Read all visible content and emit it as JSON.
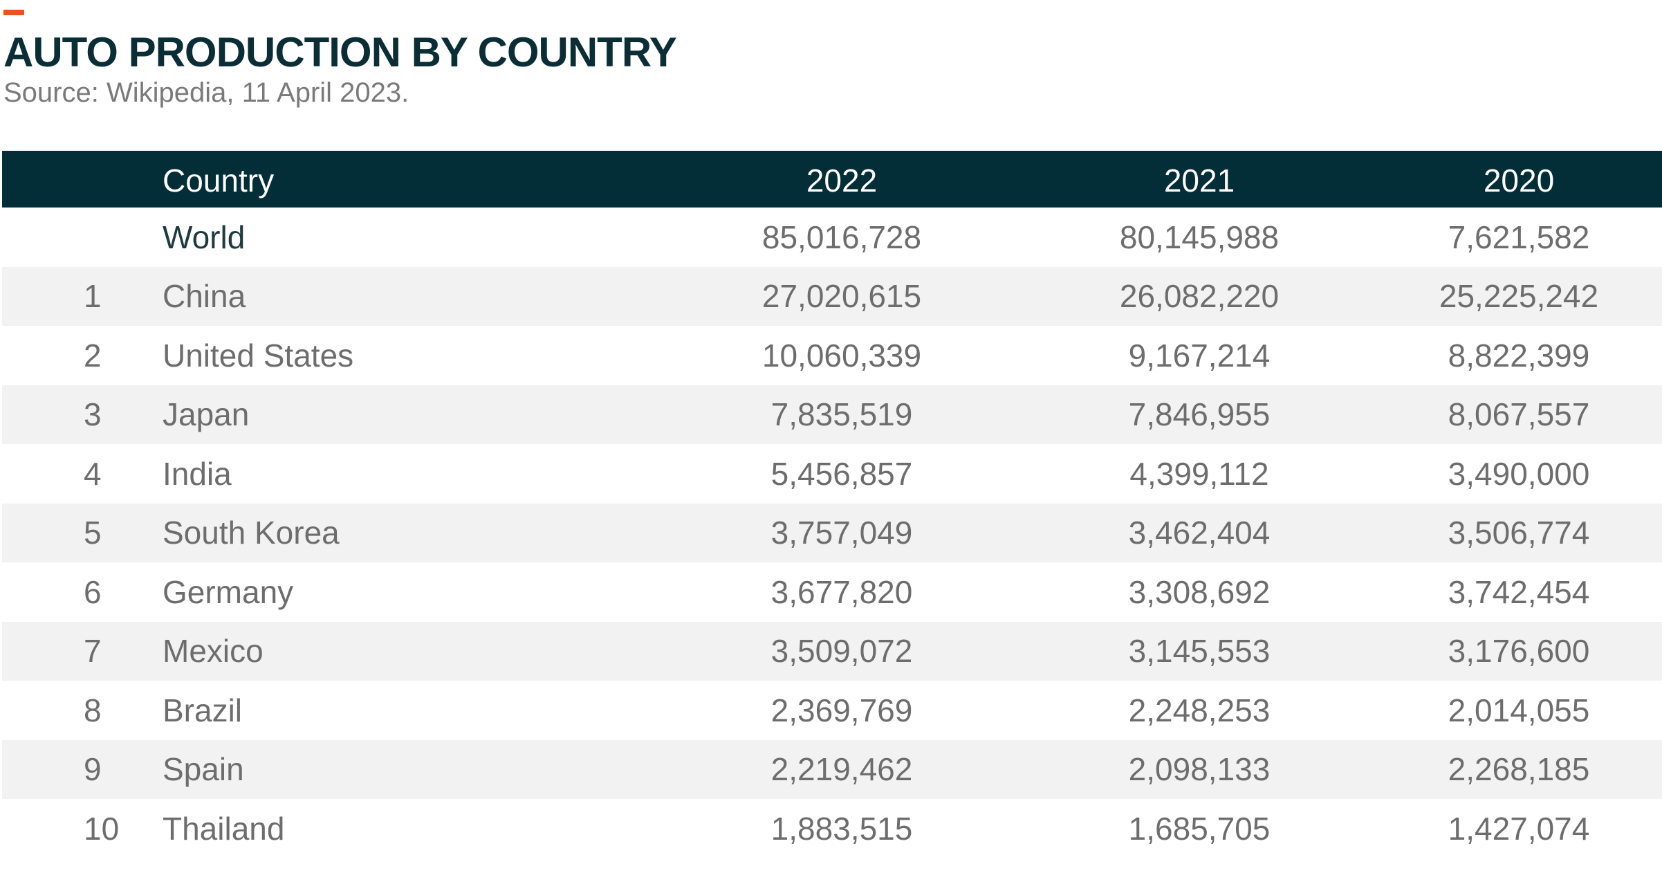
{
  "title": "AUTO PRODUCTION BY COUNTRY",
  "subtitle": "Source: Wikipedia, 11 April 2023.",
  "colors": {
    "accent": "#e8531f",
    "header_bg": "#032e38",
    "title": "#0b2e36",
    "stripe": "#f2f2f2",
    "text": "#6d6d6d"
  },
  "chart_data": {
    "type": "table",
    "title": "AUTO PRODUCTION BY COUNTRY",
    "subtitle": "Source: Wikipedia, 11 April 2023.",
    "columns": [
      "",
      "Country",
      "2022",
      "2021",
      "2020"
    ],
    "rows": [
      {
        "rank": "",
        "country": "World",
        "y2022": "85,016,728",
        "y2021": "80,145,988",
        "y2020": "7,621,582"
      },
      {
        "rank": "1",
        "country": "China",
        "y2022": "27,020,615",
        "y2021": "26,082,220",
        "y2020": "25,225,242"
      },
      {
        "rank": "2",
        "country": "United States",
        "y2022": "10,060,339",
        "y2021": "9,167,214",
        "y2020": "8,822,399"
      },
      {
        "rank": "3",
        "country": "Japan",
        "y2022": "7,835,519",
        "y2021": "7,846,955",
        "y2020": "8,067,557"
      },
      {
        "rank": "4",
        "country": "India",
        "y2022": "5,456,857",
        "y2021": "4,399,112",
        "y2020": "3,490,000"
      },
      {
        "rank": "5",
        "country": "South Korea",
        "y2022": "3,757,049",
        "y2021": "3,462,404",
        "y2020": "3,506,774"
      },
      {
        "rank": "6",
        "country": "Germany",
        "y2022": "3,677,820",
        "y2021": "3,308,692",
        "y2020": "3,742,454"
      },
      {
        "rank": "7",
        "country": "Mexico",
        "y2022": "3,509,072",
        "y2021": "3,145,553",
        "y2020": "3,176,600"
      },
      {
        "rank": "8",
        "country": "Brazil",
        "y2022": "2,369,769",
        "y2021": "2,248,253",
        "y2020": "2,014,055"
      },
      {
        "rank": "9",
        "country": "Spain",
        "y2022": "2,219,462",
        "y2021": "2,098,133",
        "y2020": "2,268,185"
      },
      {
        "rank": "10",
        "country": "Thailand",
        "y2022": "1,883,515",
        "y2021": "1,685,705",
        "y2020": "1,427,074"
      }
    ]
  }
}
